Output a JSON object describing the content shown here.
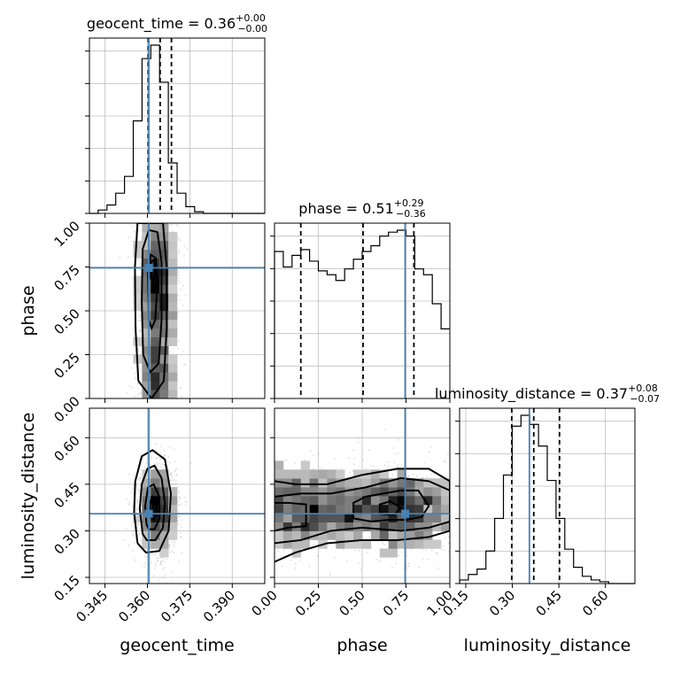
{
  "chart_data": {
    "type": "corner",
    "parameters": [
      "geocent_time",
      "phase",
      "luminosity_distance"
    ],
    "axis_labels": {
      "x": [
        "geocent_time",
        "phase",
        "luminosity_distance"
      ],
      "y": [
        "phase",
        "luminosity_distance"
      ]
    },
    "titles": [
      {
        "param": "geocent_time",
        "text": "geocent_time = 0.36",
        "sup": "+0.00",
        "sub": "−0.00"
      },
      {
        "param": "phase",
        "text": "phase = 0.51",
        "sup": "+0.29",
        "sub": "−0.36"
      },
      {
        "param": "luminosity_distance",
        "text": "luminosity_distance = 0.37",
        "sup": "+0.08",
        "sub": "−0.07"
      }
    ],
    "ranges": {
      "geocent_time": [
        0.3395,
        0.4015
      ],
      "phase": [
        0.0,
        1.0
      ],
      "luminosity_distance": [
        0.13,
        0.695
      ]
    },
    "ticks": {
      "geocent_time": {
        "values": [
          0.345,
          0.36,
          0.375,
          0.39
        ],
        "labels": [
          "0.345",
          "0.360",
          "0.375",
          "0.390"
        ]
      },
      "phase": {
        "values": [
          0.0,
          0.25,
          0.5,
          0.75,
          1.0
        ],
        "labels": [
          "0.00",
          "0.25",
          "0.50",
          "0.75",
          "1.00"
        ]
      },
      "luminosity_distance": {
        "values": [
          0.15,
          0.3,
          0.45,
          0.6
        ],
        "labels": [
          "0.15",
          "0.30",
          "0.45",
          "0.60"
        ]
      }
    },
    "truths": {
      "geocent_time": 0.3605,
      "phase": 0.745,
      "luminosity_distance": 0.355
    },
    "quantiles": {
      "geocent_time": [
        0.3603,
        0.3645,
        0.3685
      ],
      "phase": [
        0.15,
        0.505,
        0.795
      ],
      "luminosity_distance": [
        0.298,
        0.369,
        0.452
      ]
    },
    "histograms": {
      "geocent_time": {
        "bin_edges": [
          0.3395,
          0.3426,
          0.3457,
          0.3488,
          0.3519,
          0.355,
          0.3581,
          0.3612,
          0.3643,
          0.3674,
          0.3705,
          0.3736,
          0.3767,
          0.3798,
          0.3829,
          0.386,
          0.3891,
          0.3922,
          0.3953,
          0.3984,
          0.4015
        ],
        "counts": [
          0.0,
          0.02,
          0.05,
          0.12,
          0.22,
          0.55,
          0.92,
          1.0,
          0.78,
          0.3,
          0.12,
          0.04,
          0.01,
          0.0,
          0.0,
          0.0,
          0.0,
          0.0,
          0.0,
          0.0
        ]
      },
      "phase": {
        "bin_edges": [
          0.0,
          0.05,
          0.1,
          0.15,
          0.2,
          0.25,
          0.3,
          0.35,
          0.4,
          0.45,
          0.5,
          0.55,
          0.6,
          0.65,
          0.7,
          0.75,
          0.8,
          0.85,
          0.9,
          0.95,
          1.0
        ],
        "counts": [
          0.76,
          0.68,
          0.74,
          0.77,
          0.71,
          0.66,
          0.64,
          0.61,
          0.67,
          0.72,
          0.76,
          0.79,
          0.84,
          0.86,
          0.87,
          0.84,
          0.67,
          0.64,
          0.49,
          0.36
        ]
      },
      "luminosity_distance": {
        "bin_edges": [
          0.13,
          0.1583,
          0.1865,
          0.2148,
          0.243,
          0.2713,
          0.2995,
          0.3278,
          0.356,
          0.3843,
          0.4125,
          0.4408,
          0.469,
          0.4973,
          0.5255,
          0.5538,
          0.582,
          0.6103,
          0.6385,
          0.6668,
          0.695
        ],
        "counts": [
          0.02,
          0.05,
          0.08,
          0.18,
          0.36,
          0.6,
          0.87,
          0.93,
          0.88,
          0.76,
          0.57,
          0.36,
          0.19,
          0.09,
          0.04,
          0.02,
          0.01,
          0.0,
          0.0,
          0.0
        ]
      }
    },
    "contour_levels": {
      "phase_vs_geocent_time": [
        [
          [
            0.3568,
            0.1
          ],
          [
            0.3558,
            0.4
          ],
          [
            0.3556,
            0.75
          ],
          [
            0.3565,
            1.0
          ],
          [
            0.3655,
            1.0
          ],
          [
            0.3668,
            0.75
          ],
          [
            0.3668,
            0.4
          ],
          [
            0.3658,
            0.1
          ],
          [
            0.3615,
            0.0
          ],
          [
            0.3568,
            0.1
          ]
        ],
        [
          [
            0.3585,
            0.25
          ],
          [
            0.358,
            0.55
          ],
          [
            0.3583,
            0.85
          ],
          [
            0.3605,
            0.96
          ],
          [
            0.3635,
            0.95
          ],
          [
            0.365,
            0.78
          ],
          [
            0.365,
            0.45
          ],
          [
            0.364,
            0.2
          ],
          [
            0.361,
            0.15
          ],
          [
            0.3585,
            0.25
          ]
        ],
        [
          [
            0.3605,
            0.45
          ],
          [
            0.3602,
            0.72
          ],
          [
            0.3612,
            0.82
          ],
          [
            0.363,
            0.8
          ],
          [
            0.3635,
            0.65
          ],
          [
            0.3628,
            0.45
          ],
          [
            0.3615,
            0.4
          ],
          [
            0.3605,
            0.45
          ]
        ],
        [
          [
            0.3612,
            0.68
          ],
          [
            0.3612,
            0.78
          ],
          [
            0.3624,
            0.79
          ],
          [
            0.3628,
            0.72
          ],
          [
            0.362,
            0.67
          ],
          [
            0.3612,
            0.68
          ]
        ]
      ],
      "luminosity_distance_vs_geocent_time": [
        [
          [
            0.3565,
            0.26
          ],
          [
            0.3553,
            0.36
          ],
          [
            0.3557,
            0.46
          ],
          [
            0.358,
            0.54
          ],
          [
            0.3618,
            0.56
          ],
          [
            0.3662,
            0.53
          ],
          [
            0.3683,
            0.42
          ],
          [
            0.3675,
            0.3
          ],
          [
            0.3642,
            0.235
          ],
          [
            0.3595,
            0.23
          ],
          [
            0.3565,
            0.26
          ]
        ],
        [
          [
            0.3583,
            0.29
          ],
          [
            0.3573,
            0.37
          ],
          [
            0.358,
            0.45
          ],
          [
            0.36,
            0.5
          ],
          [
            0.3625,
            0.51
          ],
          [
            0.365,
            0.47
          ],
          [
            0.3662,
            0.39
          ],
          [
            0.3655,
            0.31
          ],
          [
            0.3628,
            0.27
          ],
          [
            0.3598,
            0.27
          ],
          [
            0.3583,
            0.29
          ]
        ],
        [
          [
            0.3597,
            0.32
          ],
          [
            0.3592,
            0.38
          ],
          [
            0.3602,
            0.44
          ],
          [
            0.3622,
            0.45
          ],
          [
            0.3642,
            0.41
          ],
          [
            0.3643,
            0.34
          ],
          [
            0.3625,
            0.305
          ],
          [
            0.3605,
            0.305
          ],
          [
            0.3597,
            0.32
          ]
        ],
        [
          [
            0.361,
            0.345
          ],
          [
            0.3607,
            0.385
          ],
          [
            0.3618,
            0.41
          ],
          [
            0.363,
            0.39
          ],
          [
            0.3632,
            0.355
          ],
          [
            0.3622,
            0.337
          ],
          [
            0.361,
            0.345
          ]
        ]
      ],
      "luminosity_distance_vs_phase": [
        [
          [
            0.0,
            0.2
          ],
          [
            0.12,
            0.23
          ],
          [
            0.3,
            0.26
          ],
          [
            0.5,
            0.27
          ],
          [
            0.7,
            0.27
          ],
          [
            0.88,
            0.28
          ],
          [
            1.0,
            0.3
          ],
          [
            1.0,
            0.46
          ],
          [
            0.88,
            0.5
          ],
          [
            0.7,
            0.5
          ],
          [
            0.5,
            0.48
          ],
          [
            0.3,
            0.45
          ],
          [
            0.12,
            0.45
          ],
          [
            0.0,
            0.46
          ]
        ],
        [
          [
            0.0,
            0.26
          ],
          [
            0.15,
            0.27
          ],
          [
            0.32,
            0.3
          ],
          [
            0.5,
            0.31
          ],
          [
            0.72,
            0.3
          ],
          [
            0.88,
            0.31
          ],
          [
            1.0,
            0.33
          ],
          [
            1.0,
            0.43
          ],
          [
            0.88,
            0.46
          ],
          [
            0.72,
            0.47
          ],
          [
            0.52,
            0.44
          ],
          [
            0.32,
            0.42
          ],
          [
            0.15,
            0.42
          ],
          [
            0.0,
            0.41
          ]
        ],
        [
          [
            0.0,
            0.3
          ],
          [
            0.08,
            0.31
          ],
          [
            0.18,
            0.315
          ],
          [
            0.18,
            0.385
          ],
          [
            0.08,
            0.39
          ],
          [
            0.0,
            0.39
          ]
        ],
        [
          [
            0.45,
            0.34
          ],
          [
            0.55,
            0.33
          ],
          [
            0.65,
            0.335
          ],
          [
            0.75,
            0.335
          ],
          [
            0.84,
            0.345
          ],
          [
            0.88,
            0.38
          ],
          [
            0.82,
            0.43
          ],
          [
            0.72,
            0.43
          ],
          [
            0.62,
            0.42
          ],
          [
            0.52,
            0.41
          ],
          [
            0.45,
            0.39
          ],
          [
            0.45,
            0.34
          ]
        ],
        [
          [
            0.6,
            0.355
          ],
          [
            0.68,
            0.35
          ],
          [
            0.72,
            0.375
          ],
          [
            0.66,
            0.395
          ],
          [
            0.6,
            0.385
          ],
          [
            0.6,
            0.355
          ]
        ]
      ]
    },
    "samples_style": "grey scatter with greyscale 2D histogram density",
    "colors": {
      "truth": "#4682b4",
      "lines": "#000000",
      "grid": "#b0b0b0",
      "samples": "#808080"
    },
    "grid": true
  }
}
